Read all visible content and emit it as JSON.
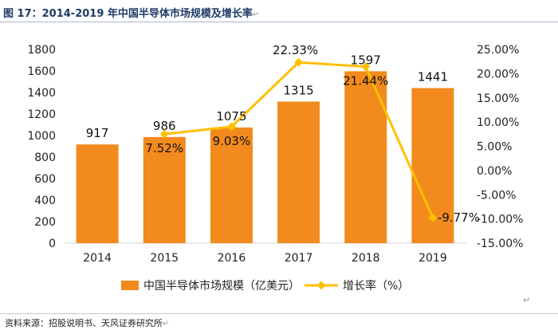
{
  "header": {
    "title": "图 17：2014-2019 年中国半导体市场规模及增长率"
  },
  "footer": {
    "source": "资料来源：招股说明书、天风证券研究所"
  },
  "marks": {
    "return_mark": "↵"
  },
  "colors": {
    "bar": "#f28a1d",
    "line": "#ffc000",
    "title": "#1f3c66"
  },
  "chart_data": {
    "type": "bar",
    "categories": [
      "2014",
      "2015",
      "2016",
      "2017",
      "2018",
      "2019"
    ],
    "series": [
      {
        "name": "中国半导体市场规模（亿美元）",
        "type": "bar",
        "axis": "left",
        "values": [
          917,
          986,
          1075,
          1315,
          1597,
          1441
        ],
        "labels": [
          "917",
          "986",
          "1075",
          "1315",
          "1597",
          "1441"
        ]
      },
      {
        "name": "增长率（%）",
        "type": "line",
        "axis": "right",
        "x": [
          "2015",
          "2016",
          "2017",
          "2018",
          "2019"
        ],
        "values": [
          7.52,
          9.03,
          22.33,
          21.44,
          -9.77
        ],
        "labels": [
          "7.52%",
          "9.03%",
          "22.33%",
          "21.44%",
          "-9.77%"
        ]
      }
    ],
    "y_left": {
      "min": 0,
      "max": 1800,
      "step": 200,
      "ticks": [
        "0",
        "200",
        "400",
        "600",
        "800",
        "1000",
        "1200",
        "1400",
        "1600",
        "1800"
      ]
    },
    "y_right": {
      "min": -15,
      "max": 25,
      "step": 5,
      "ticks": [
        "-15.00%",
        "-10.00%",
        "-5.00%",
        "0.00%",
        "5.00%",
        "10.00%",
        "15.00%",
        "20.00%",
        "25.00%"
      ]
    },
    "legend_position": "bottom",
    "grid": false
  }
}
